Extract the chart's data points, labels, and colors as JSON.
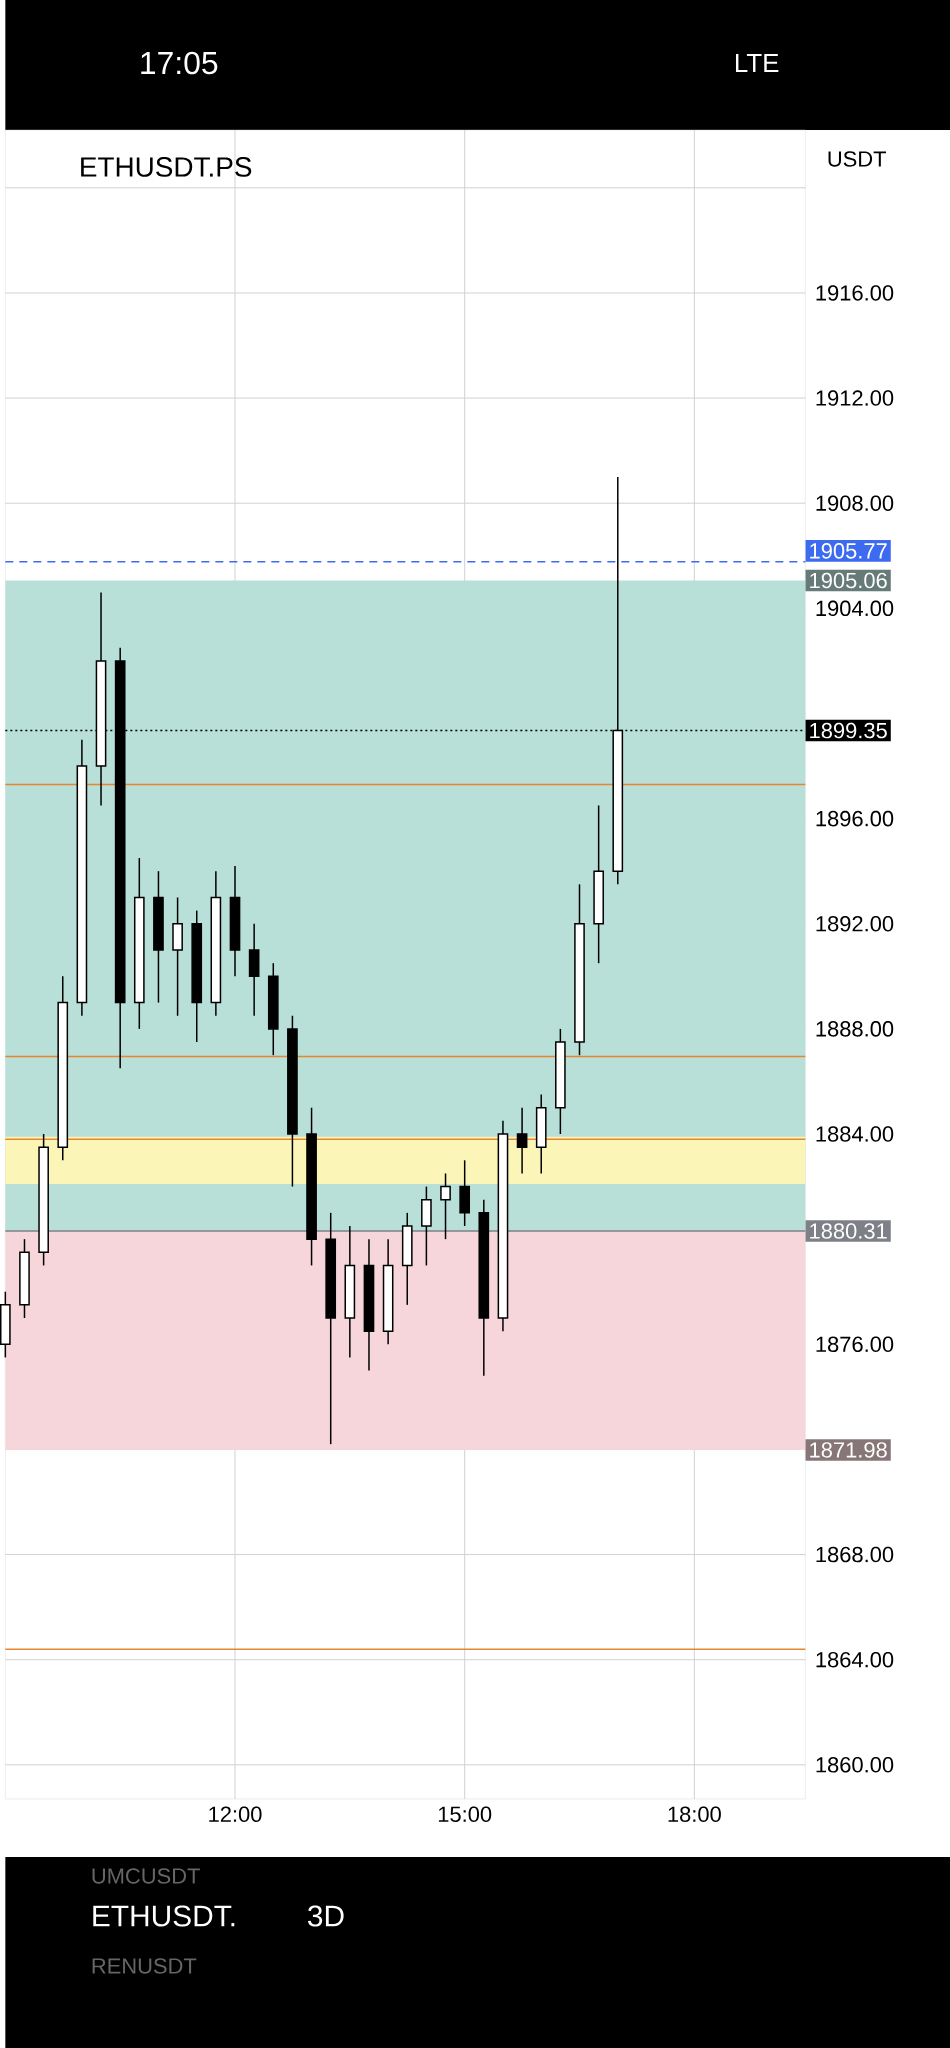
{
  "chart_data": {
    "type": "candlestick",
    "title": "ETHUSDT.PS",
    "color": "#000000",
    "x": [
      9.0,
      9.25,
      9.5,
      9.75,
      10.0,
      10.25,
      10.5,
      10.75,
      11.0,
      11.25,
      11.5,
      11.75,
      12.0,
      12.25,
      12.5,
      12.75,
      13.0,
      13.25,
      13.5,
      13.75,
      14.0,
      14.25,
      14.5,
      14.75,
      15.0,
      15.25,
      15.5,
      15.75,
      16.0,
      16.25,
      16.5,
      16.75,
      17.0
    ],
    "ohlc": [
      [
        1876,
        1878,
        1875.5,
        1877.5
      ],
      [
        1877.5,
        1880,
        1877,
        1879.5
      ],
      [
        1879.5,
        1884,
        1879,
        1883.5
      ],
      [
        1883.5,
        1890,
        1883,
        1889
      ],
      [
        1889,
        1899,
        1888.5,
        1898
      ],
      [
        1898,
        1904.6,
        1896.5,
        1902
      ],
      [
        1902,
        1902.5,
        1886.5,
        1889
      ],
      [
        1889,
        1894.5,
        1888,
        1893
      ],
      [
        1893,
        1894,
        1889,
        1891
      ],
      [
        1891,
        1893,
        1888.5,
        1892
      ],
      [
        1892,
        1892.5,
        1887.5,
        1889
      ],
      [
        1889,
        1894,
        1888.5,
        1893
      ],
      [
        1893,
        1894.2,
        1890,
        1891
      ],
      [
        1891,
        1892,
        1888.5,
        1890
      ],
      [
        1890,
        1890.5,
        1887,
        1888
      ],
      [
        1888,
        1888.5,
        1882,
        1884
      ],
      [
        1884,
        1885,
        1879,
        1880
      ],
      [
        1880,
        1881,
        1872.2,
        1877
      ],
      [
        1877,
        1880.5,
        1875.5,
        1879
      ],
      [
        1879,
        1880,
        1875,
        1876.5
      ],
      [
        1876.5,
        1880,
        1876,
        1879
      ],
      [
        1879,
        1881,
        1877.5,
        1880.5
      ],
      [
        1880.5,
        1882,
        1879,
        1881.5
      ],
      [
        1881.5,
        1882.5,
        1880,
        1882
      ],
      [
        1882,
        1883,
        1880.5,
        1881
      ],
      [
        1881,
        1881.5,
        1874.8,
        1877
      ],
      [
        1877,
        1884.5,
        1876.5,
        1884
      ],
      [
        1884,
        1885,
        1882.5,
        1883.5
      ],
      [
        1883.5,
        1885.5,
        1882.5,
        1885
      ],
      [
        1885,
        1888,
        1884,
        1887.5
      ],
      [
        1887.5,
        1893.5,
        1887,
        1892
      ],
      [
        1892,
        1896.5,
        1890.5,
        1894
      ],
      [
        1894,
        1909,
        1893.5,
        1899.35
      ]
    ],
    "xlim": [
      9.0,
      19.45
    ],
    "ylim": [
      1858.7,
      1922.2
    ],
    "xticks": [
      {
        "value": 12,
        "label": "12:00"
      },
      {
        "value": 15,
        "label": "15:00"
      },
      {
        "value": 18,
        "label": "18:00"
      }
    ],
    "yticks": [
      {
        "value": 1860,
        "label": "1860.00"
      },
      {
        "value": 1864,
        "label": "1864.00"
      },
      {
        "value": 1868,
        "label": "1868.00"
      },
      {
        "value": 1872,
        "label": null
      },
      {
        "value": 1876,
        "label": "1876.00"
      },
      {
        "value": 1880,
        "label": null
      },
      {
        "value": 1884,
        "label": "1884.00"
      },
      {
        "value": 1888,
        "label": "1888.00"
      },
      {
        "value": 1892,
        "label": "1892.00"
      },
      {
        "value": 1896,
        "label": "1896.00"
      },
      {
        "value": 1900,
        "label": null
      },
      {
        "value": 1904,
        "label": "1904.00"
      },
      {
        "value": 1908,
        "label": "1908.00"
      },
      {
        "value": 1912,
        "label": "1912.00"
      },
      {
        "value": 1916,
        "label": "1916.00"
      },
      {
        "value": 1920,
        "label": null
      }
    ],
    "grid": true,
    "bands": [
      {
        "axis": "y",
        "from": 1880.31,
        "to": 1905.06,
        "label": "1905.06",
        "color": "#b9e0d8"
      },
      {
        "axis": "y",
        "from": 1871.98,
        "to": 1880.31,
        "label": "1871.98",
        "color": "#f6d6da"
      },
      {
        "axis": "y",
        "from": 1882.1,
        "to": 1883.9,
        "label": null,
        "color": "#fbf5b8"
      }
    ],
    "ref_lines": [
      {
        "axis": "y",
        "value": 1905.77,
        "label": "1905.77",
        "color": "#3d6bf0",
        "line_style": "dashed"
      },
      {
        "axis": "y",
        "value": 1899.35,
        "label": "1899.35",
        "color": "#000000",
        "line_style": "dotted"
      },
      {
        "axis": "y",
        "value": 1880.31,
        "label": "1880.31",
        "color": "#7e8087",
        "line_style": "solid"
      },
      {
        "axis": "y",
        "value": 1897.3,
        "label": null,
        "color": "#e8852f",
        "line_style": "solid"
      },
      {
        "axis": "y",
        "value": 1886.95,
        "label": null,
        "color": "#e8852f",
        "line_style": "solid"
      },
      {
        "axis": "y",
        "value": 1883.8,
        "label": null,
        "color": "#e8852f",
        "line_style": "solid"
      },
      {
        "axis": "y",
        "value": 1864.4,
        "label": null,
        "color": "#e8852f",
        "line_style": "solid"
      }
    ],
    "annotations": [
      "17:05",
      "LTE",
      "ETHUSDT.",
      "3D",
      "UMCUSDT",
      "RENUSDT",
      "USDT"
    ]
  }
}
